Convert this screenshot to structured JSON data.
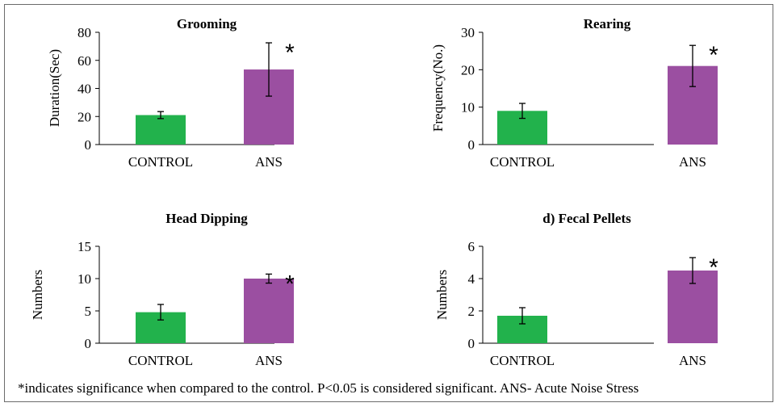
{
  "colors": {
    "control": "#22b24c",
    "ans": "#9b4fa1"
  },
  "footnote": "*indicates significance when compared to the control. P<0.05 is considered significant. ANS- Acute Noise Stress",
  "chart_data": [
    {
      "type": "bar",
      "title": "Grooming",
      "ylabel": "Duration(Sec)",
      "categories": [
        "CONTROL",
        "ANS"
      ],
      "values": [
        21,
        53.5
      ],
      "errors": [
        2.5,
        19
      ],
      "ylim": [
        0,
        80
      ],
      "yticks": [
        0,
        20,
        40,
        60,
        80
      ],
      "significance": [
        "",
        "*"
      ]
    },
    {
      "type": "bar",
      "title": "Rearing",
      "ylabel": "Frequency(No.)",
      "categories": [
        "CONTROL",
        "ANS"
      ],
      "values": [
        9,
        21
      ],
      "errors": [
        2,
        5.5
      ],
      "ylim": [
        0,
        30
      ],
      "yticks": [
        0,
        10,
        20,
        30
      ],
      "significance": [
        "",
        "*"
      ]
    },
    {
      "type": "bar",
      "title": "Head Dipping",
      "ylabel": "Numbers",
      "categories": [
        "CONTROL",
        "ANS"
      ],
      "values": [
        4.8,
        10
      ],
      "errors": [
        1.2,
        0.7
      ],
      "ylim": [
        0,
        15
      ],
      "yticks": [
        0,
        5,
        10,
        15
      ],
      "significance": [
        "",
        "*"
      ]
    },
    {
      "type": "bar",
      "title": "d) Fecal Pellets",
      "ylabel": "Numbers",
      "categories": [
        "CONTROL",
        "ANS"
      ],
      "values": [
        1.7,
        4.5
      ],
      "errors": [
        0.5,
        0.8
      ],
      "ylim": [
        0,
        6
      ],
      "yticks": [
        0,
        2,
        4,
        6
      ],
      "significance": [
        "",
        "*"
      ]
    }
  ]
}
